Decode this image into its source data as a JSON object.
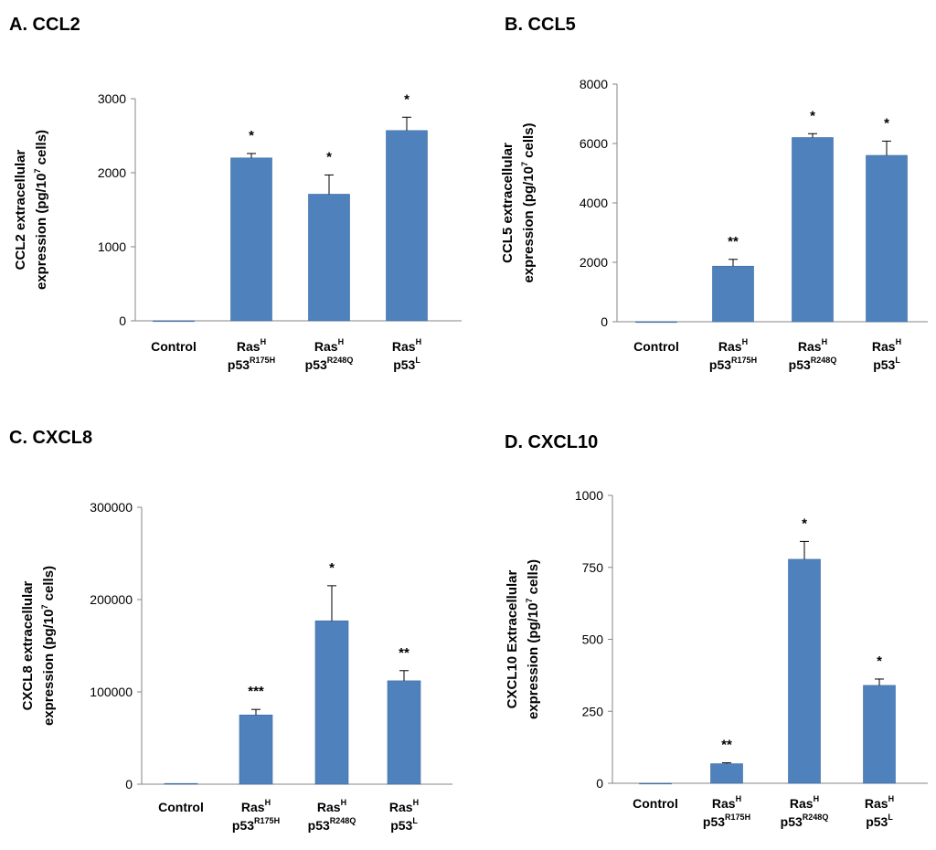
{
  "chart_data": [
    {
      "type": "bar",
      "title": "A. CCL2",
      "ylabel_line1": "CCL2 extracellular",
      "ylabel_line2_prefix": "expression (pg/10",
      "ylabel_sup": "7",
      "ylabel_line2_suffix": " cells)",
      "ylim": [
        0,
        3000
      ],
      "yticks": [
        "0",
        "1000",
        "2000",
        "3000"
      ],
      "ytick_values": [
        0,
        1000,
        2000,
        3000
      ],
      "categories": [
        {
          "line1": "Control",
          "sup1": "",
          "line2": "",
          "sup2": ""
        },
        {
          "line1": "Ras",
          "sup1": "H",
          "line2": "p53",
          "sup2": "R175H"
        },
        {
          "line1": "Ras",
          "sup1": "H",
          "line2": "p53",
          "sup2": "R248Q"
        },
        {
          "line1": "Ras",
          "sup1": "H",
          "line2": "p53",
          "sup2": "L"
        }
      ],
      "values": [
        0,
        2200,
        1710,
        2570
      ],
      "errors": [
        0,
        60,
        260,
        180
      ],
      "significance": [
        "",
        "*",
        "*",
        "*"
      ],
      "bar_color": "#4f81bd"
    },
    {
      "type": "bar",
      "title": "B. CCL5",
      "ylabel_line1": "CCL5 extracellular",
      "ylabel_line2_prefix": "expression (pg/10",
      "ylabel_sup": "7",
      "ylabel_line2_suffix": " cells)",
      "ylim": [
        0,
        8000
      ],
      "yticks": [
        "0",
        "2000",
        "4000",
        "6000",
        "8000"
      ],
      "ytick_values": [
        0,
        2000,
        4000,
        6000,
        8000
      ],
      "categories": [
        {
          "line1": "Control",
          "sup1": "",
          "line2": "",
          "sup2": ""
        },
        {
          "line1": "Ras",
          "sup1": "H",
          "line2": "p53",
          "sup2": "R175H"
        },
        {
          "line1": "Ras",
          "sup1": "H",
          "line2": "p53",
          "sup2": "R248Q"
        },
        {
          "line1": "Ras",
          "sup1": "H",
          "line2": "p53",
          "sup2": "L"
        }
      ],
      "values": [
        0,
        1870,
        6200,
        5600
      ],
      "errors": [
        0,
        230,
        130,
        480
      ],
      "significance": [
        "",
        "**",
        "*",
        "*"
      ],
      "bar_color": "#4f81bd"
    },
    {
      "type": "bar",
      "title": "C. CXCL8",
      "ylabel_line1": "CXCL8 extracellular",
      "ylabel_line2_prefix": "expression (pg/10",
      "ylabel_sup": "7",
      "ylabel_line2_suffix": " cells)",
      "ylim": [
        0,
        300000
      ],
      "yticks": [
        "0",
        "100000",
        "200000",
        "300000"
      ],
      "ytick_values": [
        0,
        100000,
        200000,
        300000
      ],
      "categories": [
        {
          "line1": "Control",
          "sup1": "",
          "line2": "",
          "sup2": ""
        },
        {
          "line1": "Ras",
          "sup1": "H",
          "line2": "p53",
          "sup2": "R175H"
        },
        {
          "line1": "Ras",
          "sup1": "H",
          "line2": "p53",
          "sup2": "R248Q"
        },
        {
          "line1": "Ras",
          "sup1": "H",
          "line2": "p53",
          "sup2": "L"
        }
      ],
      "values": [
        800,
        75000,
        177000,
        112000
      ],
      "errors": [
        0,
        6000,
        38000,
        11000
      ],
      "significance": [
        "",
        "***",
        "*",
        "**"
      ],
      "bar_color": "#4f81bd"
    },
    {
      "type": "bar",
      "title": "D. CXCL10",
      "ylabel_line1": "CXCL10 Extracellular",
      "ylabel_line2_prefix": "expression (pg/10",
      "ylabel_sup": "7",
      "ylabel_line2_suffix": " cells)",
      "ylim": [
        0,
        1000
      ],
      "yticks": [
        "0",
        "250",
        "500",
        "750",
        "1000"
      ],
      "ytick_values": [
        0,
        250,
        500,
        750,
        1000
      ],
      "categories": [
        {
          "line1": "Control",
          "sup1": "",
          "line2": "",
          "sup2": ""
        },
        {
          "line1": "Ras",
          "sup1": "H",
          "line2": "p53",
          "sup2": "R175H"
        },
        {
          "line1": "Ras",
          "sup1": "H",
          "line2": "p53",
          "sup2": "R248Q"
        },
        {
          "line1": "Ras",
          "sup1": "H",
          "line2": "p53",
          "sup2": "L"
        }
      ],
      "values": [
        0,
        68,
        778,
        340
      ],
      "errors": [
        0,
        3,
        62,
        22
      ],
      "significance": [
        "",
        "**",
        "*",
        "*"
      ],
      "bar_color": "#4f81bd"
    }
  ]
}
